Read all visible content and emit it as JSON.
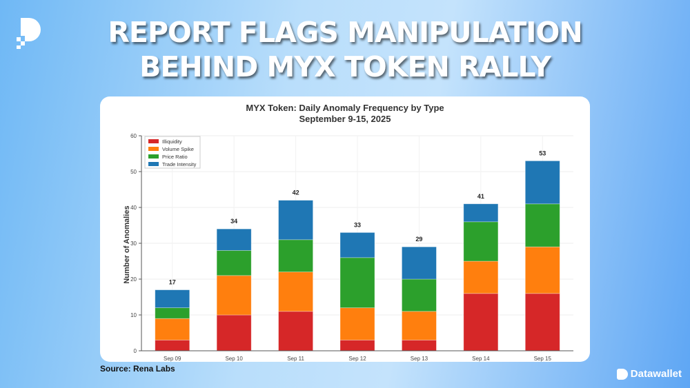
{
  "headline": {
    "line1": "REPORT FLAGS MANIPULATION",
    "line2": "BEHIND MYX TOKEN RALLY"
  },
  "source": "Source: Rena Labs",
  "brand": {
    "name": "Datawallet",
    "icon": "datawallet-logo-icon"
  },
  "chart_data": {
    "type": "bar",
    "stacked": true,
    "title": "MYX Token: Daily Anomaly Frequency by Type",
    "subtitle": "September 9-15, 2025",
    "xlabel": "",
    "ylabel": "Number of Anomalies",
    "ylim": [
      0,
      60
    ],
    "yticks": [
      0,
      10,
      20,
      30,
      40,
      50,
      60
    ],
    "grid": true,
    "legend_position": "top-left",
    "categories": [
      "Sep 09",
      "Sep 10",
      "Sep 11",
      "Sep 12",
      "Sep 13",
      "Sep 14",
      "Sep 15"
    ],
    "series": [
      {
        "name": "Illiquidity",
        "color": "#d62728",
        "values": [
          3,
          10,
          11,
          3,
          3,
          16,
          16
        ]
      },
      {
        "name": "Volume Spike",
        "color": "#ff7f0e",
        "values": [
          6,
          11,
          11,
          9,
          8,
          9,
          13
        ]
      },
      {
        "name": "Price Ratio",
        "color": "#2ca02c",
        "values": [
          3,
          7,
          9,
          14,
          9,
          11,
          12
        ]
      },
      {
        "name": "Trade Intensity",
        "color": "#1f77b4",
        "values": [
          5,
          6,
          11,
          7,
          9,
          5,
          12
        ]
      }
    ],
    "totals": [
      17,
      34,
      42,
      33,
      29,
      41,
      53
    ]
  }
}
